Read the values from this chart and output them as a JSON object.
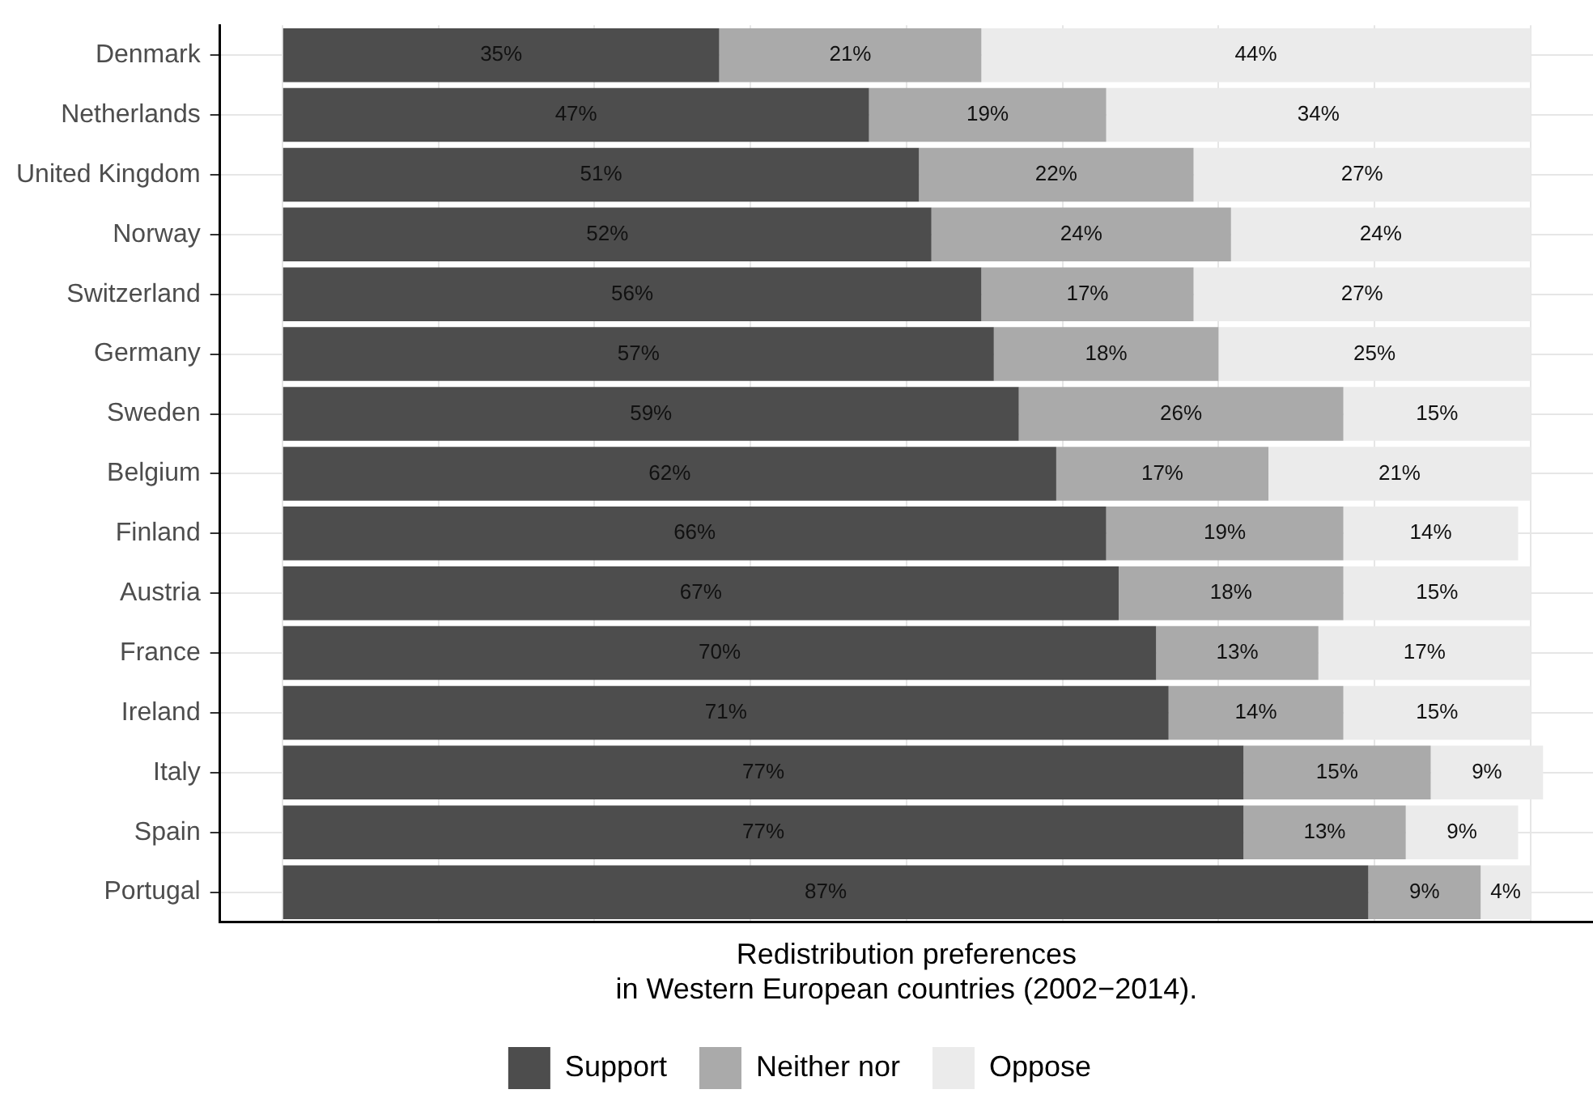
{
  "chart_data": {
    "type": "bar",
    "orientation": "horizontal",
    "stacked": true,
    "xlabel": "Redistribution preferences\nin Western European countries (2002−2014).",
    "categories": [
      "Denmark",
      "Netherlands",
      "United Kingdom",
      "Norway",
      "Switzerland",
      "Germany",
      "Sweden",
      "Belgium",
      "Finland",
      "Austria",
      "France",
      "Ireland",
      "Italy",
      "Spain",
      "Portugal"
    ],
    "series": [
      {
        "name": "Support",
        "color": "#4d4d4d",
        "values": [
          35,
          47,
          51,
          52,
          56,
          57,
          59,
          62,
          66,
          67,
          70,
          71,
          77,
          77,
          87
        ],
        "value_labels": [
          "35%",
          "47%",
          "51%",
          "52%",
          "56%",
          "57%",
          "59%",
          "62%",
          "66%",
          "67%",
          "70%",
          "71%",
          "77%",
          "77%",
          "87%"
        ]
      },
      {
        "name": "Neither nor",
        "color": "#aaaaaa",
        "values": [
          21,
          19,
          22,
          24,
          17,
          18,
          26,
          17,
          19,
          18,
          13,
          14,
          15,
          13,
          9
        ],
        "value_labels": [
          "21%",
          "19%",
          "22%",
          "24%",
          "17%",
          "18%",
          "26%",
          "17%",
          "19%",
          "18%",
          "13%",
          "14%",
          "15%",
          "13%",
          "9%"
        ]
      },
      {
        "name": "Oppose",
        "color": "#ebebeb",
        "values": [
          44,
          34,
          27,
          24,
          27,
          25,
          15,
          21,
          14,
          15,
          17,
          15,
          9,
          9,
          4
        ],
        "value_labels": [
          "44%",
          "34%",
          "27%",
          "24%",
          "27%",
          "25%",
          "15%",
          "21%",
          "14%",
          "15%",
          "17%",
          "15%",
          "9%",
          "9%",
          "4%"
        ]
      }
    ],
    "xlim": [
      -5,
      105
    ],
    "xticks": [
      {
        "value": 0,
        "label": null
      },
      {
        "value": 12.5,
        "label": null
      },
      {
        "value": 25,
        "label": null
      },
      {
        "value": 37.5,
        "label": null
      },
      {
        "value": 50,
        "label": null
      },
      {
        "value": 62.5,
        "label": null
      },
      {
        "value": 75,
        "label": null
      },
      {
        "value": 87.5,
        "label": null
      },
      {
        "value": 100,
        "label": null
      }
    ],
    "tick_labels": "y",
    "grid": true,
    "legend": "bottom"
  }
}
